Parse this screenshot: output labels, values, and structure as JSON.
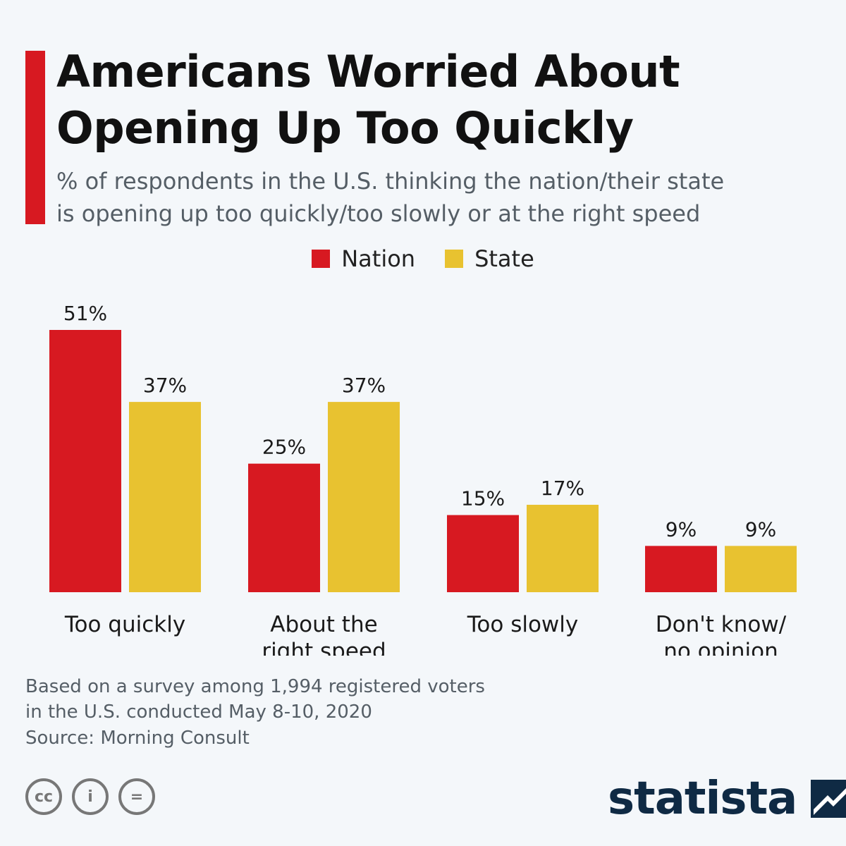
{
  "header": {
    "title_lines": [
      "Americans Worried About",
      "Opening Up Too Quickly"
    ],
    "subtitle_lines": [
      "% of respondents in the U.S. thinking the nation/their state",
      "is opening up too quickly/too slowly or at the right speed"
    ],
    "accent_color": "#d71921"
  },
  "legend": [
    {
      "label": "Nation",
      "color": "#d71921"
    },
    {
      "label": "State",
      "color": "#e8c230"
    }
  ],
  "chart_data": {
    "type": "bar",
    "categories": [
      [
        "Too quickly"
      ],
      [
        "About the",
        "right speed"
      ],
      [
        "Too slowly"
      ],
      [
        "Don't know/",
        "no opinion"
      ]
    ],
    "series": [
      {
        "name": "Nation",
        "color": "#d71921",
        "values": [
          51,
          25,
          15,
          9
        ],
        "labels": [
          "51%",
          "25%",
          "15%",
          "9%"
        ]
      },
      {
        "name": "State",
        "color": "#e8c230",
        "values": [
          37,
          37,
          17,
          9
        ],
        "labels": [
          "37%",
          "37%",
          "17%",
          "9%"
        ]
      }
    ],
    "ylim": [
      0,
      51
    ],
    "grid": false,
    "legend_position": "top-center"
  },
  "footer": {
    "note_lines": [
      "Based on a survey among 1,994 registered voters",
      "in the U.S. conducted May 8-10, 2020"
    ],
    "source": "Source: Morning Consult",
    "license_icons": [
      "cc-icon",
      "attribution-icon",
      "no-derivatives-icon"
    ],
    "license_symbols": [
      "cc",
      "i",
      "="
    ],
    "brand": "statista",
    "brand_color": "#0f2a44"
  }
}
